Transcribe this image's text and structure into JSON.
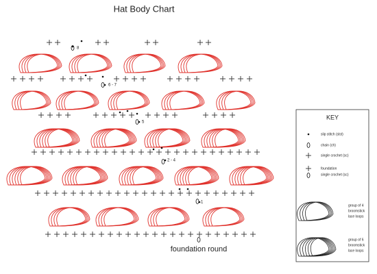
{
  "title": "Hat Body Chart",
  "row_labels": [
    "8",
    "6 - 7",
    "5",
    "2 - 4",
    "1"
  ],
  "footer": "foundation round",
  "key": {
    "title": "KEY",
    "items": [
      [
        "slip stitch (slst)"
      ],
      [
        "chain (ch)"
      ],
      [
        "single crochet (sc)"
      ],
      [
        "foundation",
        "single crochet (sc)"
      ],
      [
        "group of 4",
        "broomstick",
        "lace loops"
      ],
      [
        "group of 6",
        "broomstick",
        "lace loops"
      ]
    ]
  }
}
